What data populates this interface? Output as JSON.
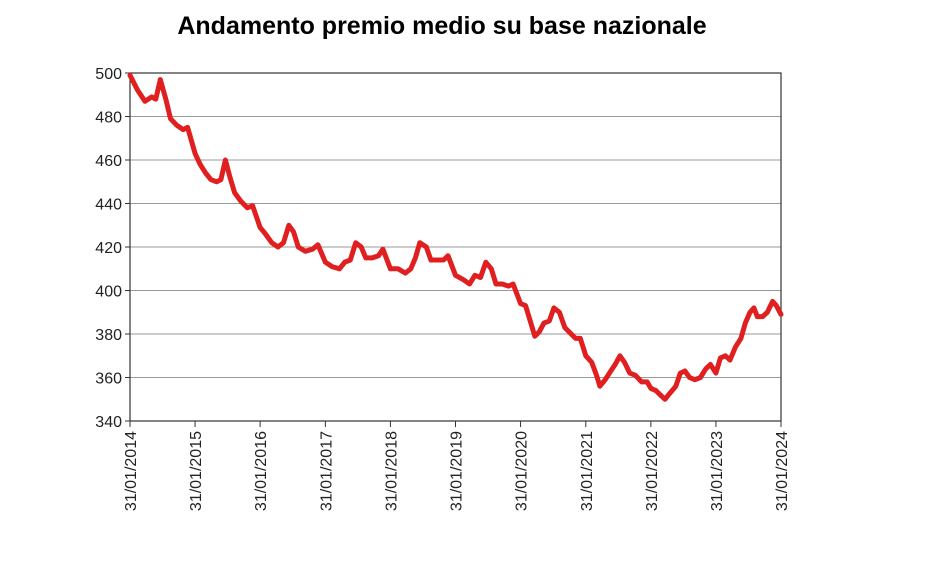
{
  "chart_data": {
    "type": "line",
    "title": "Andamento premio medio su base nazionale",
    "xlabel": "",
    "ylabel": "",
    "ylim": [
      340,
      500
    ],
    "yticks": [
      340,
      360,
      380,
      400,
      420,
      440,
      460,
      480,
      500
    ],
    "xticks": [
      "31/01/2014",
      "31/01/2015",
      "31/01/2016",
      "31/01/2017",
      "31/01/2018",
      "31/01/2019",
      "31/01/2020",
      "31/01/2021",
      "31/01/2022",
      "31/01/2023",
      "31/01/2024"
    ],
    "xlim": [
      "2014-01-31",
      "2024-01-31"
    ],
    "grid": true,
    "series": [
      {
        "color": "#e02020",
        "points": [
          [
            "2014-01-31",
            499
          ],
          [
            "2014-03-15",
            492
          ],
          [
            "2014-04-25",
            487
          ],
          [
            "2014-06-01",
            489
          ],
          [
            "2014-06-25",
            488
          ],
          [
            "2014-07-20",
            497
          ],
          [
            "2014-08-20",
            488
          ],
          [
            "2014-09-15",
            479
          ],
          [
            "2014-10-20",
            476
          ],
          [
            "2014-11-25",
            474
          ],
          [
            "2014-12-20",
            475
          ],
          [
            "2015-01-31",
            463
          ],
          [
            "2015-02-28",
            458
          ],
          [
            "2015-03-31",
            454
          ],
          [
            "2015-04-30",
            451
          ],
          [
            "2015-06-01",
            450
          ],
          [
            "2015-06-25",
            451
          ],
          [
            "2015-07-20",
            460
          ],
          [
            "2015-08-15",
            452
          ],
          [
            "2015-09-10",
            445
          ],
          [
            "2015-10-15",
            441
          ],
          [
            "2015-11-20",
            438
          ],
          [
            "2015-12-20",
            439
          ],
          [
            "2016-01-31",
            429
          ],
          [
            "2016-03-01",
            426
          ],
          [
            "2016-04-05",
            422
          ],
          [
            "2016-05-10",
            420
          ],
          [
            "2016-06-10",
            422
          ],
          [
            "2016-07-10",
            430
          ],
          [
            "2016-08-05",
            427
          ],
          [
            "2016-09-01",
            420
          ],
          [
            "2016-10-10",
            418
          ],
          [
            "2016-11-20",
            419
          ],
          [
            "2016-12-20",
            421
          ],
          [
            "2017-01-31",
            413
          ],
          [
            "2017-03-10",
            411
          ],
          [
            "2017-04-20",
            410
          ],
          [
            "2017-05-20",
            413
          ],
          [
            "2017-06-20",
            414
          ],
          [
            "2017-07-20",
            422
          ],
          [
            "2017-08-20",
            420
          ],
          [
            "2017-09-15",
            415
          ],
          [
            "2017-10-20",
            415
          ],
          [
            "2017-11-25",
            416
          ],
          [
            "2017-12-20",
            419
          ],
          [
            "2018-01-31",
            410
          ],
          [
            "2018-03-15",
            410
          ],
          [
            "2018-04-25",
            408
          ],
          [
            "2018-05-25",
            410
          ],
          [
            "2018-06-20",
            415
          ],
          [
            "2018-07-15",
            422
          ],
          [
            "2018-08-20",
            420
          ],
          [
            "2018-09-15",
            414
          ],
          [
            "2018-10-20",
            414
          ],
          [
            "2018-11-25",
            414
          ],
          [
            "2018-12-20",
            416
          ],
          [
            "2019-01-31",
            407
          ],
          [
            "2019-03-15",
            405
          ],
          [
            "2019-04-20",
            403
          ],
          [
            "2019-05-20",
            407
          ],
          [
            "2019-06-20",
            406
          ],
          [
            "2019-07-20",
            413
          ],
          [
            "2019-08-20",
            410
          ],
          [
            "2019-09-15",
            403
          ],
          [
            "2019-10-20",
            403
          ],
          [
            "2019-11-25",
            402
          ],
          [
            "2019-12-20",
            403
          ],
          [
            "2020-01-31",
            394
          ],
          [
            "2020-02-28",
            393
          ],
          [
            "2020-03-25",
            386
          ],
          [
            "2020-04-20",
            379
          ],
          [
            "2020-05-15",
            381
          ],
          [
            "2020-06-10",
            385
          ],
          [
            "2020-07-10",
            386
          ],
          [
            "2020-08-05",
            392
          ],
          [
            "2020-09-05",
            390
          ],
          [
            "2020-10-05",
            383
          ],
          [
            "2020-11-10",
            380
          ],
          [
            "2020-12-05",
            378
          ],
          [
            "2020-12-31",
            378
          ],
          [
            "2021-01-31",
            370
          ],
          [
            "2021-03-05",
            367
          ],
          [
            "2021-04-01",
            361
          ],
          [
            "2021-04-20",
            356
          ],
          [
            "2021-05-20",
            359
          ],
          [
            "2021-06-20",
            363
          ],
          [
            "2021-07-15",
            366
          ],
          [
            "2021-08-10",
            370
          ],
          [
            "2021-09-05",
            367
          ],
          [
            "2021-10-05",
            362
          ],
          [
            "2021-11-05",
            361
          ],
          [
            "2021-12-10",
            358
          ],
          [
            "2022-01-10",
            358
          ],
          [
            "2022-01-31",
            355
          ],
          [
            "2022-02-28",
            354
          ],
          [
            "2022-03-25",
            352
          ],
          [
            "2022-04-20",
            350
          ],
          [
            "2022-05-20",
            353
          ],
          [
            "2022-06-20",
            356
          ],
          [
            "2022-07-15",
            362
          ],
          [
            "2022-08-10",
            363
          ],
          [
            "2022-09-05",
            360
          ],
          [
            "2022-10-05",
            359
          ],
          [
            "2022-11-05",
            360
          ],
          [
            "2022-12-05",
            364
          ],
          [
            "2022-12-31",
            366
          ],
          [
            "2023-01-31",
            362
          ],
          [
            "2023-02-25",
            369
          ],
          [
            "2023-03-25",
            370
          ],
          [
            "2023-04-20",
            368
          ],
          [
            "2023-05-20",
            374
          ],
          [
            "2023-06-20",
            378
          ],
          [
            "2023-07-15",
            385
          ],
          [
            "2023-08-10",
            390
          ],
          [
            "2023-09-01",
            392
          ],
          [
            "2023-09-20",
            388
          ],
          [
            "2023-10-20",
            388
          ],
          [
            "2023-11-15",
            390
          ],
          [
            "2023-12-15",
            395
          ],
          [
            "2024-01-05",
            393
          ],
          [
            "2024-01-31",
            389
          ]
        ]
      }
    ]
  }
}
